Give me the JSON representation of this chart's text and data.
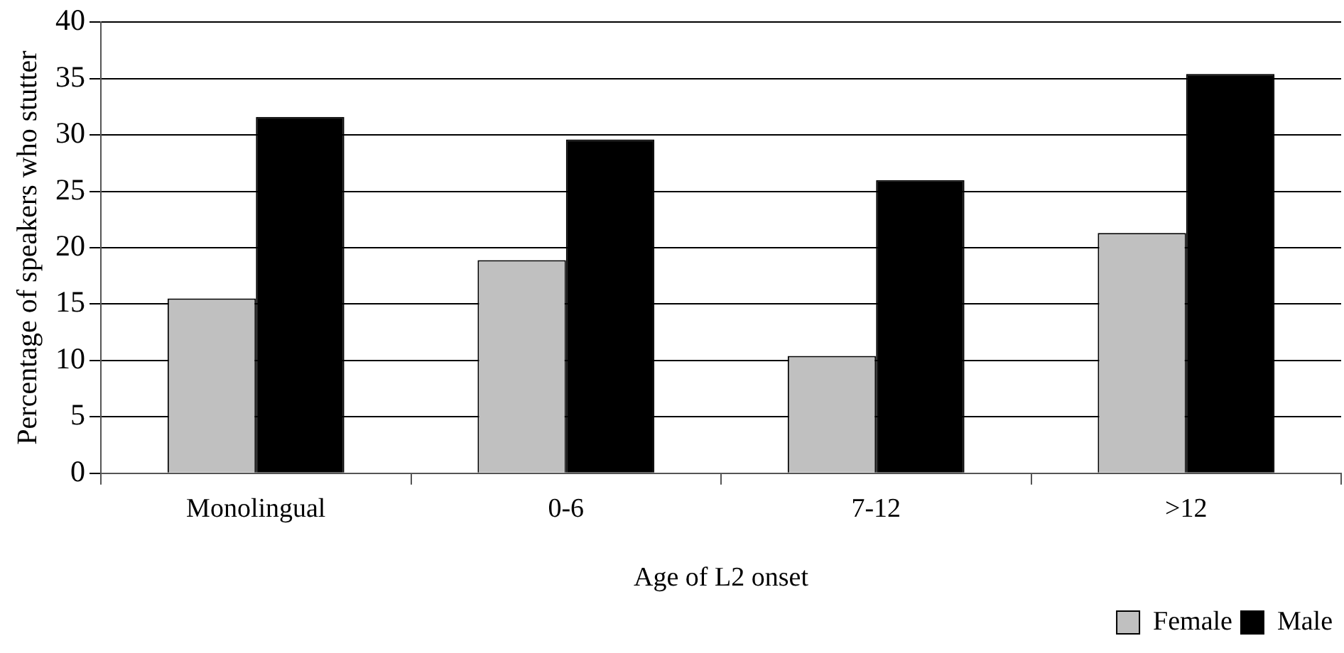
{
  "chart_data": {
    "type": "bar",
    "xlabel": "Age of L2 onset",
    "ylabel": "Percentage of speakers who stutter",
    "categories": [
      "Monolingual",
      "0-6",
      "7-12",
      ">12"
    ],
    "series": [
      {
        "name": "Female",
        "color": "#c0c0c0",
        "values": [
          15.5,
          18.9,
          10.4,
          21.3
        ]
      },
      {
        "name": "Male",
        "color": "#000000",
        "values": [
          31.6,
          29.6,
          26.0,
          35.4
        ]
      }
    ],
    "ylim": [
      0,
      40
    ],
    "yticks": [
      0,
      5,
      10,
      15,
      20,
      25,
      30,
      35,
      40
    ],
    "grid": "y",
    "legend": "bottom right"
  }
}
